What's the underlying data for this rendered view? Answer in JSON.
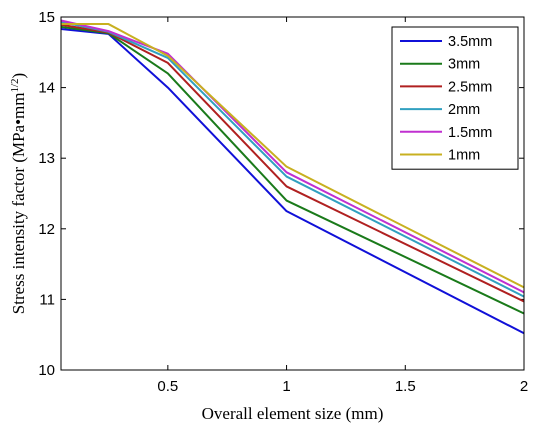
{
  "chart_data": {
    "type": "line",
    "xlabel": "Overall element size (mm)",
    "ylabel_main": "Stress intensity factor (MPa•mm",
    "ylabel_sup": "1/2",
    "ylabel_close": ")",
    "xlim": [
      0.05,
      2
    ],
    "ylim": [
      10,
      15
    ],
    "x_ticks": [
      0.5,
      1,
      1.5,
      2
    ],
    "x_tick_labels": [
      "0.5",
      "1",
      "1.5",
      "2"
    ],
    "y_ticks": [
      10,
      11,
      12,
      13,
      14,
      15
    ],
    "y_tick_labels": [
      "10",
      "11",
      "12",
      "13",
      "14",
      "15"
    ],
    "grid": false,
    "legend_position": "top-right",
    "x": [
      0.05,
      0.25,
      0.5,
      1,
      2
    ],
    "series": [
      {
        "name": "3.5mm",
        "color": "#1010d8",
        "values": [
          14.83,
          14.76,
          14.0,
          12.25,
          10.52
        ]
      },
      {
        "name": "3mm",
        "color": "#1a7a1a",
        "values": [
          14.86,
          14.77,
          14.2,
          12.4,
          10.8
        ]
      },
      {
        "name": "2.5mm",
        "color": "#b02020",
        "values": [
          14.89,
          14.78,
          14.35,
          12.6,
          10.97
        ]
      },
      {
        "name": "2mm",
        "color": "#30a0c0",
        "values": [
          14.93,
          14.79,
          14.42,
          12.74,
          11.04
        ]
      },
      {
        "name": "1.5mm",
        "color": "#c030d0",
        "values": [
          14.95,
          14.8,
          14.48,
          12.8,
          11.1
        ]
      },
      {
        "name": "1mm",
        "color": "#c8b020",
        "values": [
          14.9,
          14.9,
          14.45,
          12.88,
          11.17
        ]
      }
    ]
  }
}
